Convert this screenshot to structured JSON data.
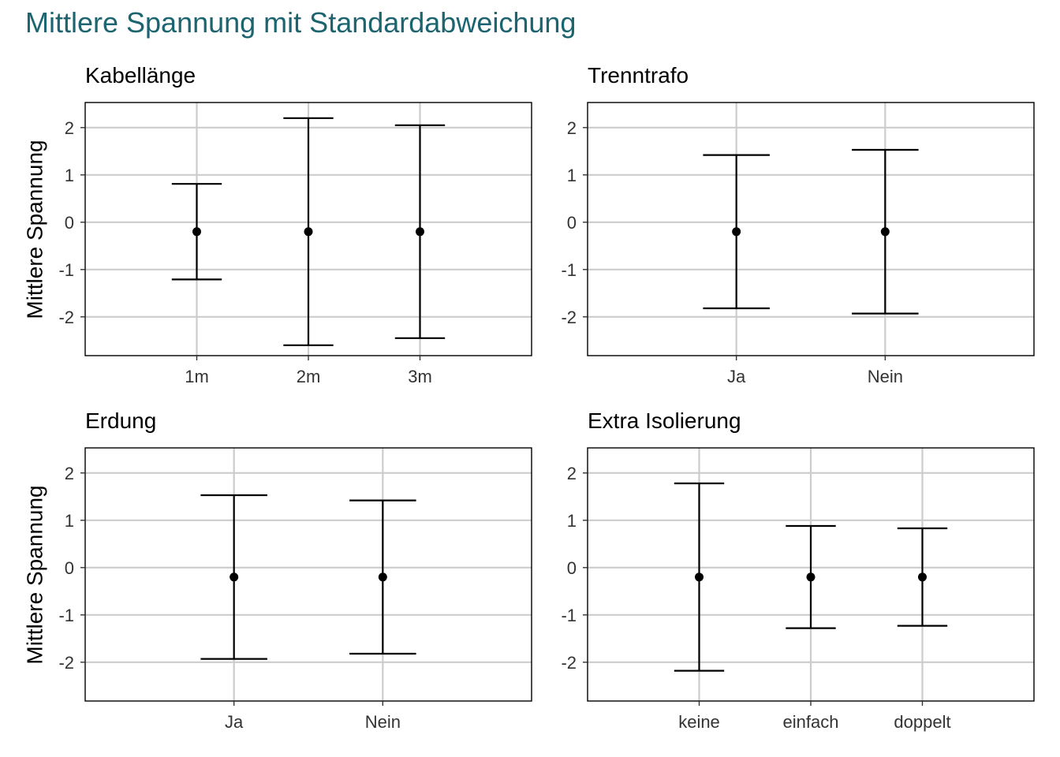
{
  "title": "Mittlere Spannung mit Standardabweichung",
  "colors": {
    "title": "#1b6470",
    "grid": "#cccccc",
    "ink": "#000000",
    "background": "#ffffff"
  },
  "chart_data": [
    {
      "type": "errorbar",
      "title": "Kabellänge",
      "ylabel": "Mittlere Spannung",
      "categories": [
        "1m",
        "2m",
        "3m"
      ],
      "values": [
        -0.2,
        -0.2,
        -0.2
      ],
      "upper": [
        0.81,
        2.2,
        2.05
      ],
      "lower": [
        -1.21,
        -2.6,
        -2.45
      ],
      "ylim": [
        -2.82,
        2.53
      ],
      "yticks": [
        -2,
        -1,
        0,
        1,
        2
      ],
      "grid": true
    },
    {
      "type": "errorbar",
      "title": "Trenntrafo",
      "ylabel": "",
      "categories": [
        "Ja",
        "Nein"
      ],
      "values": [
        -0.2,
        -0.2
      ],
      "upper": [
        1.42,
        1.53
      ],
      "lower": [
        -1.82,
        -1.93
      ],
      "ylim": [
        -2.82,
        2.53
      ],
      "yticks": [
        -2,
        -1,
        0,
        1,
        2
      ],
      "grid": true
    },
    {
      "type": "errorbar",
      "title": "Erdung",
      "ylabel": "Mittlere Spannung",
      "categories": [
        "Ja",
        "Nein"
      ],
      "values": [
        -0.2,
        -0.2
      ],
      "upper": [
        1.53,
        1.42
      ],
      "lower": [
        -1.93,
        -1.82
      ],
      "ylim": [
        -2.82,
        2.53
      ],
      "yticks": [
        -2,
        -1,
        0,
        1,
        2
      ],
      "grid": true
    },
    {
      "type": "errorbar",
      "title": "Extra Isolierung",
      "ylabel": "",
      "categories": [
        "keine",
        "einfach",
        "doppelt"
      ],
      "values": [
        -0.2,
        -0.2,
        -0.2
      ],
      "upper": [
        1.78,
        0.88,
        0.83
      ],
      "lower": [
        -2.18,
        -1.28,
        -1.23
      ],
      "ylim": [
        -2.82,
        2.53
      ],
      "yticks": [
        -2,
        -1,
        0,
        1,
        2
      ],
      "grid": true
    }
  ]
}
